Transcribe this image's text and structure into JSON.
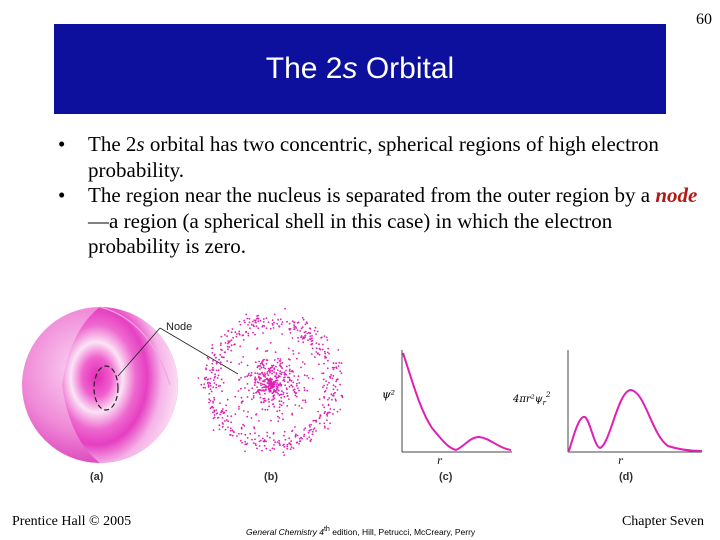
{
  "slide": {
    "page_number": "60",
    "title_prefix": "The 2",
    "title_italic": "s",
    "title_suffix": " Orbital"
  },
  "bullets": [
    {
      "marker": "•",
      "pre": "The 2",
      "italic": "s",
      "post": " orbital has two concentric, spherical regions of high electron probability."
    },
    {
      "marker": "•",
      "pre": "The region near the nucleus is separated from the outer region by a ",
      "highlight": "node",
      "post": "—a region (a spherical shell in this case) in which the electron probability is zero."
    }
  ],
  "figure": {
    "node_callout": "Node",
    "labels": {
      "a": "(a)",
      "b": "(b)",
      "c": "(c)",
      "d": "(d)"
    },
    "axis_c_y": "ψ²",
    "axis_d_y_pre": "4πr²",
    "axis_d_y_psi": "ψ",
    "axis_d_y_sub": "r",
    "axis_d_y_sup": "2",
    "axis_x": "r",
    "colors": {
      "orbital": "#e020b4",
      "sphere_light": "#f6b8ea"
    }
  },
  "footer": {
    "left": "Prentice Hall © 2005",
    "mid_italic": "General Chemistry 4",
    "mid_sup": "th",
    "mid_rest": " edition, Hill, Petrucci, McCreary, Perry",
    "right": "Chapter Seven"
  }
}
